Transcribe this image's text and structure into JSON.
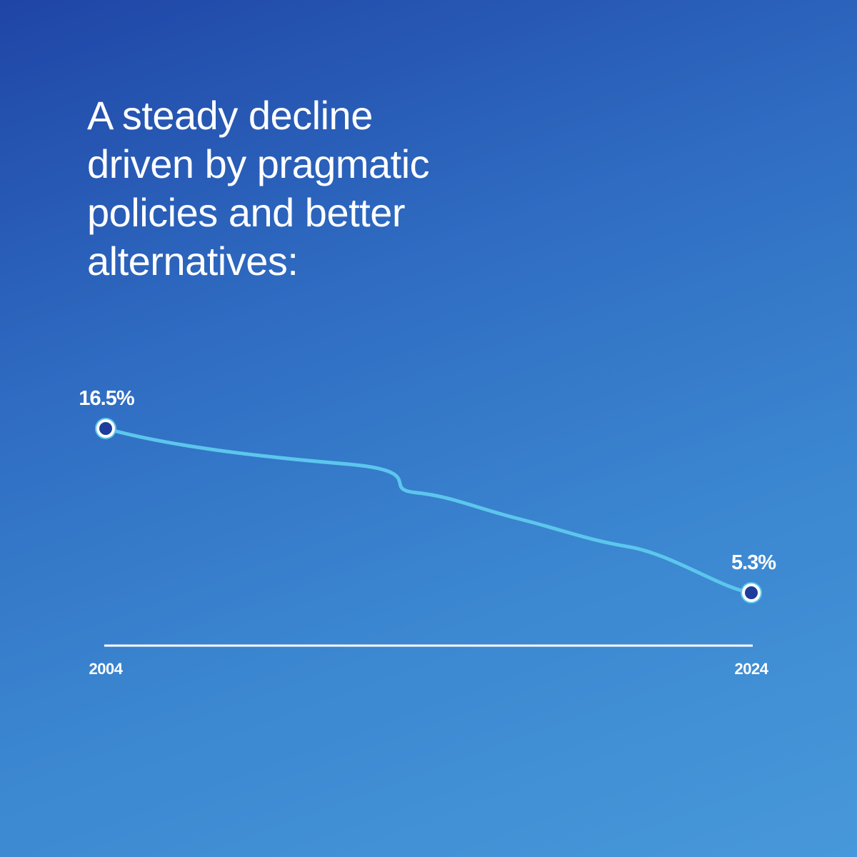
{
  "headline_lines": [
    "A steady decline",
    "driven by pragmatic",
    "policies and better",
    "alternatives:"
  ],
  "chart_data": {
    "type": "line",
    "title": "A steady decline driven by pragmatic policies and better alternatives:",
    "x": [
      2004,
      2024
    ],
    "series": [
      {
        "values": [
          16.5,
          5.3
        ],
        "value_labels": [
          "16.5%",
          "5.3%"
        ]
      }
    ],
    "x_tick_labels": [
      "2004",
      "2024"
    ],
    "xlabel": "",
    "ylabel": "",
    "ylim": [
      5.3,
      16.5
    ],
    "grid": false,
    "legend": "none",
    "colors": {
      "line": "#5cc6ec",
      "marker_fill": "#1e3c9c",
      "marker_ring": "#ffffff",
      "axis": "#ffffff",
      "text": "#ffffff"
    }
  }
}
